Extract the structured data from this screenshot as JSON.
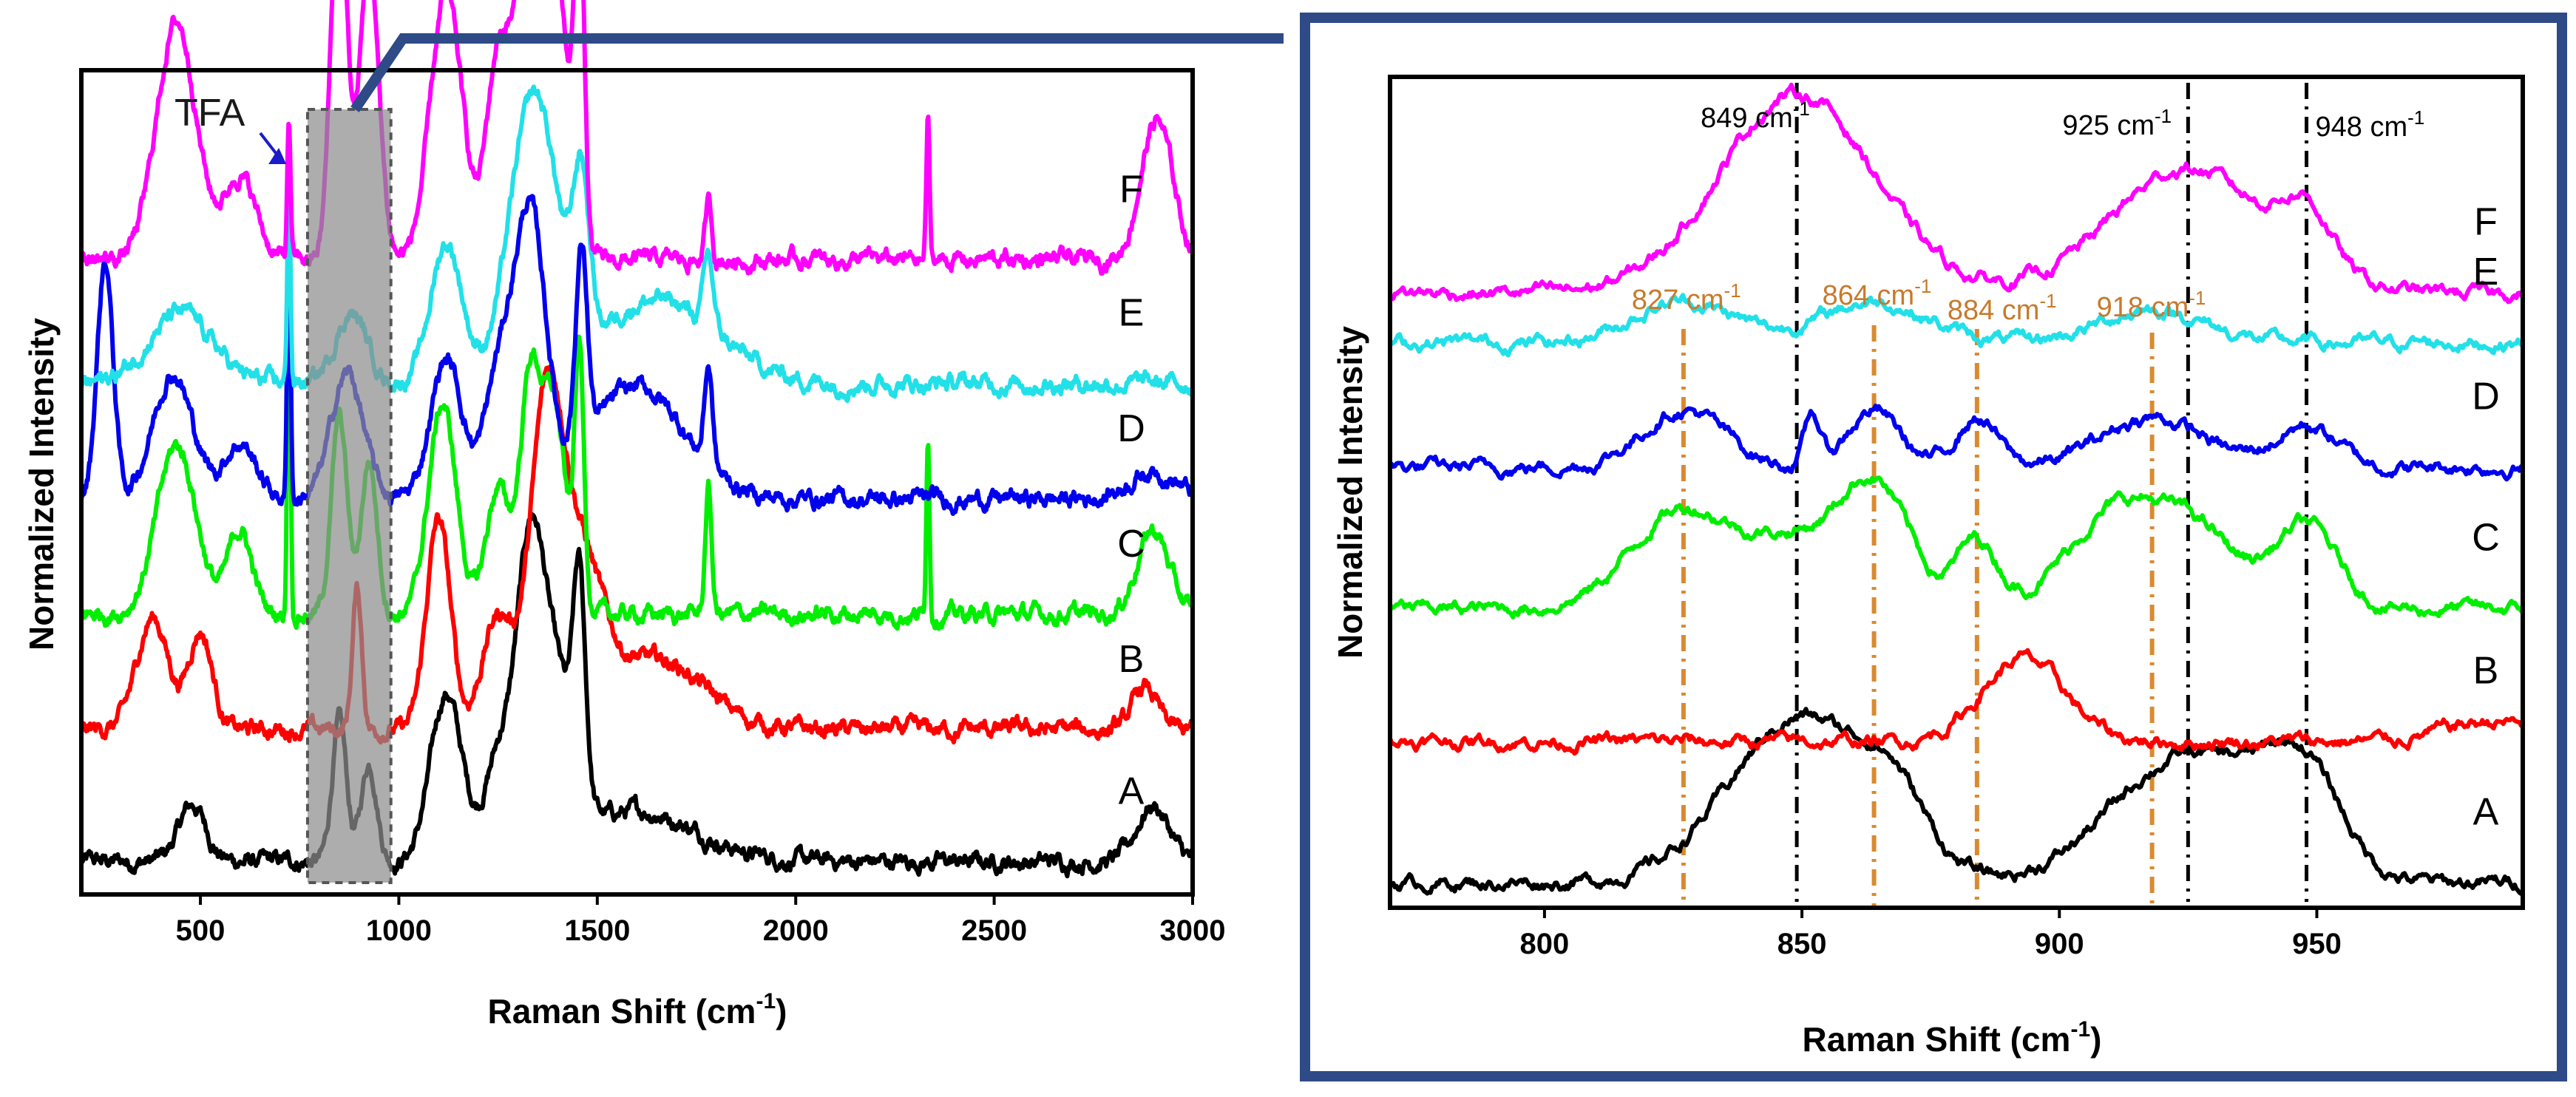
{
  "chart_data": [
    {
      "type": "line",
      "panel": "overview",
      "xlabel": "Raman Shift (cm",
      "xlabel_sup": "-1",
      "xlabel_close": ")",
      "ylabel": "Normalized Intensity",
      "xlim": [
        200,
        3000
      ],
      "xticks": [
        500,
        1000,
        1500,
        2000,
        2500,
        3000
      ],
      "xtick_labels": [
        "500",
        "1000",
        "1500",
        "2000",
        "2500",
        "3000"
      ],
      "highlight_range": [
        770,
        980
      ],
      "annotation": "TFA",
      "annotation_x": 720,
      "series": [
        {
          "name": "A",
          "color": "#000000",
          "baseline": 0.04,
          "scale": 0.34,
          "peaks": [
            [
              480,
              35,
              0.2
            ],
            [
              850,
              18,
              0.5
            ],
            [
              925,
              20,
              0.35
            ],
            [
              1120,
              40,
              0.6
            ],
            [
              1250,
              35,
              0.35
            ],
            [
              1330,
              35,
              1.0
            ],
            [
              1400,
              45,
              0.55
            ],
            [
              1455,
              15,
              0.7
            ],
            [
              1600,
              150,
              0.18
            ],
            [
              2900,
              40,
              0.2
            ]
          ]
        },
        {
          "name": "B",
          "color": "#ff0000",
          "baseline": 0.2,
          "scale": 0.34,
          "peaks": [
            [
              380,
              40,
              0.4
            ],
            [
              500,
              30,
              0.35
            ],
            [
              895,
              12,
              0.5
            ],
            [
              1100,
              30,
              0.75
            ],
            [
              1250,
              40,
              0.4
            ],
            [
              1370,
              40,
              1.0
            ],
            [
              1450,
              60,
              0.6
            ],
            [
              1650,
              120,
              0.25
            ],
            [
              2880,
              30,
              0.15
            ]
          ]
        },
        {
          "name": "C",
          "color": "#00ee00",
          "baseline": 0.34,
          "scale": 0.34,
          "peaks": [
            [
              440,
              50,
              0.6
            ],
            [
              600,
              30,
              0.3
            ],
            [
              723,
              4,
              1.3
            ],
            [
              850,
              20,
              0.7
            ],
            [
              925,
              20,
              0.55
            ],
            [
              1110,
              35,
              0.75
            ],
            [
              1250,
              30,
              0.45
            ],
            [
              1330,
              25,
              0.8
            ],
            [
              1390,
              30,
              0.75
            ],
            [
              1455,
              12,
              0.9
            ],
            [
              1780,
              8,
              0.45
            ],
            [
              2333,
              4,
              0.65
            ],
            [
              2900,
              40,
              0.3
            ]
          ]
        },
        {
          "name": "D",
          "color": "#0000ee",
          "baseline": 0.48,
          "scale": 0.34,
          "peaks": [
            [
              260,
              20,
              0.85
            ],
            [
              430,
              50,
              0.45
            ],
            [
              600,
              40,
              0.2
            ],
            [
              723,
              4,
              1.1
            ],
            [
              870,
              40,
              0.45
            ],
            [
              1120,
              40,
              0.5
            ],
            [
              1250,
              35,
              0.4
            ],
            [
              1330,
              40,
              1.0
            ],
            [
              1460,
              15,
              0.7
            ],
            [
              1600,
              120,
              0.4
            ],
            [
              1780,
              10,
              0.35
            ],
            [
              2900,
              60,
              0.1
            ]
          ]
        },
        {
          "name": "E",
          "color": "#22e0e8",
          "baseline": 0.62,
          "scale": 0.34,
          "peaks": [
            [
              450,
              80,
              0.25
            ],
            [
              723,
              4,
              0.75
            ],
            [
              880,
              40,
              0.25
            ],
            [
              1120,
              40,
              0.5
            ],
            [
              1340,
              60,
              1.0
            ],
            [
              1460,
              20,
              0.55
            ],
            [
              1650,
              150,
              0.3
            ],
            [
              1780,
              12,
              0.25
            ]
          ]
        },
        {
          "name": "F",
          "color": "#ff00ff",
          "baseline": 0.77,
          "scale": 0.34,
          "peaks": [
            [
              440,
              50,
              0.85
            ],
            [
              600,
              40,
              0.3
            ],
            [
              723,
              4,
              0.5
            ],
            [
              849,
              20,
              1.35
            ],
            [
              925,
              25,
              1.05
            ],
            [
              1120,
              40,
              0.95
            ],
            [
              1250,
              30,
              0.7
            ],
            [
              1330,
              35,
              1.2
            ],
            [
              1400,
              30,
              0.9
            ],
            [
              1455,
              12,
              1.25
            ],
            [
              1780,
              8,
              0.2
            ],
            [
              2333,
              4,
              0.5
            ],
            [
              2910,
              40,
              0.5
            ]
          ]
        }
      ]
    },
    {
      "type": "line",
      "panel": "inset",
      "xlabel": "Raman Shift (cm",
      "xlabel_sup": "-1",
      "xlabel_close": ")",
      "ylabel": "Normalized Intensity",
      "xlim": [
        770,
        990
      ],
      "xticks": [
        800,
        850,
        900,
        950
      ],
      "xtick_labels": [
        "800",
        "850",
        "900",
        "950"
      ],
      "reference_lines_black": [
        {
          "x": 849,
          "label": "849 cm",
          "sup": "-1"
        },
        {
          "x": 925,
          "label": "925 cm",
          "sup": "-1"
        },
        {
          "x": 948,
          "label": "948 cm",
          "sup": "-1"
        }
      ],
      "reference_lines_orange": [
        {
          "x": 827,
          "label": "827 cm",
          "sup": "-1"
        },
        {
          "x": 864,
          "label": "864 cm",
          "sup": "-1"
        },
        {
          "x": 884,
          "label": "884 cm",
          "sup": "-1"
        },
        {
          "x": 918,
          "label": "918 cm",
          "sup": "-1"
        }
      ],
      "series": [
        {
          "name": "A",
          "color": "#000000",
          "baseline": 0.03,
          "scale": 0.2,
          "peaks": [
            [
              850,
              14,
              1.0
            ],
            [
              868,
              6,
              0.3
            ],
            [
              918,
              12,
              0.5
            ],
            [
              935,
              12,
              0.5
            ],
            [
              948,
              7,
              0.5
            ]
          ]
        },
        {
          "name": "B",
          "color": "#ff0000",
          "baseline": 0.2,
          "scale": 0.2,
          "peaks": [
            [
              893,
              8,
              0.5
            ],
            [
              985,
              10,
              0.12
            ]
          ]
        },
        {
          "name": "C",
          "color": "#00ee00",
          "baseline": 0.36,
          "scale": 0.2,
          "peaks": [
            [
              827,
              10,
              0.6
            ],
            [
              848,
              8,
              0.35
            ],
            [
              864,
              7,
              0.75
            ],
            [
              884,
              4,
              0.4
            ],
            [
              912,
              10,
              0.6
            ],
            [
              928,
              8,
              0.35
            ],
            [
              948,
              6,
              0.5
            ]
          ]
        },
        {
          "name": "D",
          "color": "#0000ee",
          "baseline": 0.53,
          "scale": 0.2,
          "peaks": [
            [
              827,
              8,
              0.35
            ],
            [
              852,
              1.5,
              0.3
            ],
            [
              864,
              5,
              0.35
            ],
            [
              884,
              4,
              0.3
            ],
            [
              918,
              10,
              0.3
            ],
            [
              948,
              6,
              0.25
            ]
          ]
        },
        {
          "name": "E",
          "color": "#22e0e8",
          "baseline": 0.68,
          "scale": 0.2,
          "peaks": [
            [
              827,
              10,
              0.25
            ],
            [
              864,
              10,
              0.25
            ],
            [
              918,
              10,
              0.2
            ]
          ]
        },
        {
          "name": "F",
          "color": "#ff00ff",
          "baseline": 0.74,
          "scale": 0.2,
          "peaks": [
            [
              849,
              15,
              1.2
            ],
            [
              925,
              15,
              0.75
            ],
            [
              948,
              5,
              0.35
            ]
          ]
        }
      ]
    }
  ]
}
